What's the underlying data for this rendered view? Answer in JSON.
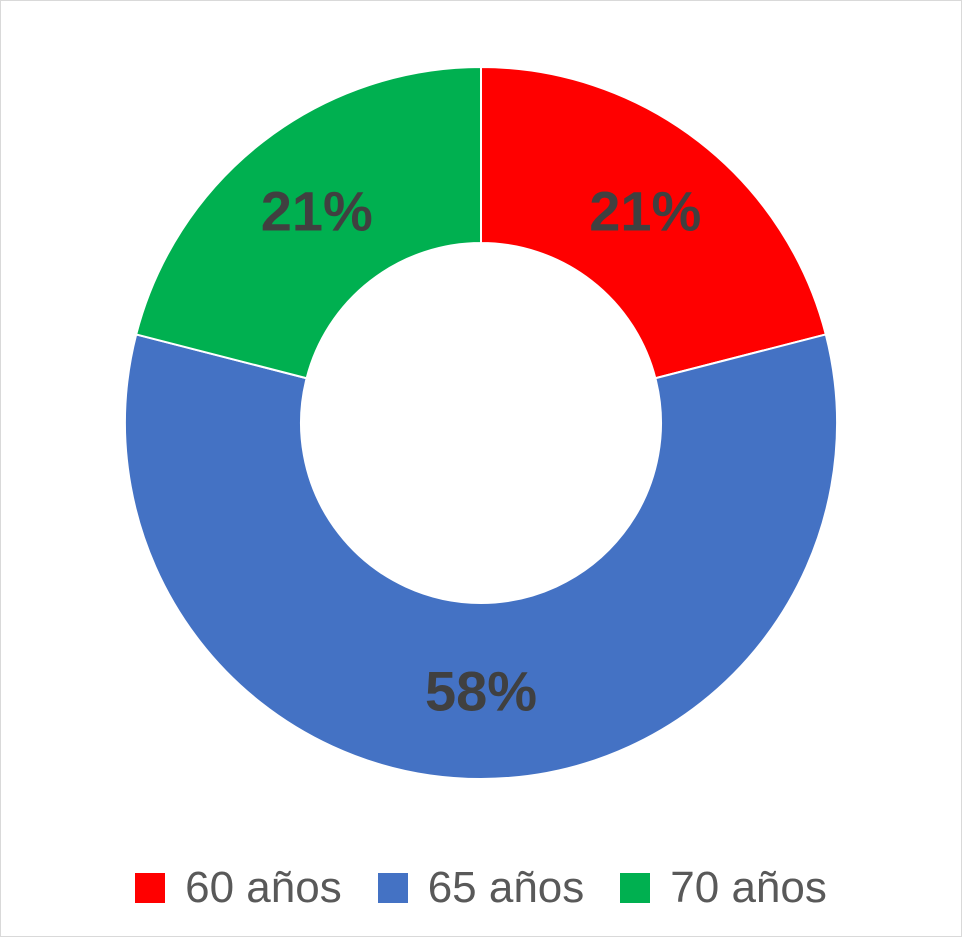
{
  "chart_data": {
    "type": "pie",
    "variant": "donut",
    "categories": [
      "60 años",
      "65 años",
      "70 años"
    ],
    "values": [
      21,
      58,
      21
    ],
    "labels": [
      "21%",
      "58%",
      "21%"
    ],
    "colors": [
      "#ff0000",
      "#4472c4",
      "#00b050"
    ],
    "label_color": "#404040",
    "legend": {
      "position": "bottom",
      "items": [
        {
          "label": "60 años",
          "color": "#ff0000"
        },
        {
          "label": "65 años",
          "color": "#4472c4"
        },
        {
          "label": "70 años",
          "color": "#00b050"
        }
      ]
    }
  }
}
